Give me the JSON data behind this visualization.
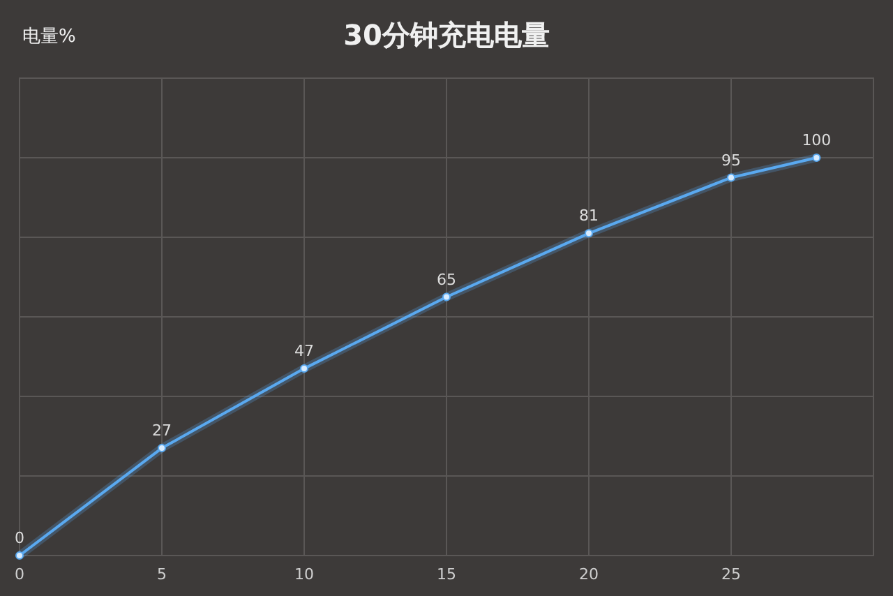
{
  "chart_data": {
    "type": "line",
    "title": "30分钟充电电量",
    "ylabel": "电量%",
    "x": [
      0,
      5,
      10,
      15,
      20,
      25,
      28
    ],
    "series": [
      {
        "color": "#5aa9f0",
        "values": [
          0,
          27,
          47,
          65,
          81,
          95,
          100
        ]
      }
    ],
    "xlim": [
      0,
      30
    ],
    "xticks": [
      0,
      5,
      10,
      15,
      20,
      25
    ],
    "ylim": [
      0,
      120
    ],
    "yticks": [
      {
        "value": 0,
        "label": null
      },
      {
        "value": 20,
        "label": null
      },
      {
        "value": 40,
        "label": null
      },
      {
        "value": 60,
        "label": null
      },
      {
        "value": 80,
        "label": null
      },
      {
        "value": 100,
        "label": null
      },
      {
        "value": 120,
        "label": null
      }
    ],
    "tick_labels": "x",
    "grid": true,
    "marker": "circle",
    "line_style": "solid",
    "data_labels": true
  }
}
